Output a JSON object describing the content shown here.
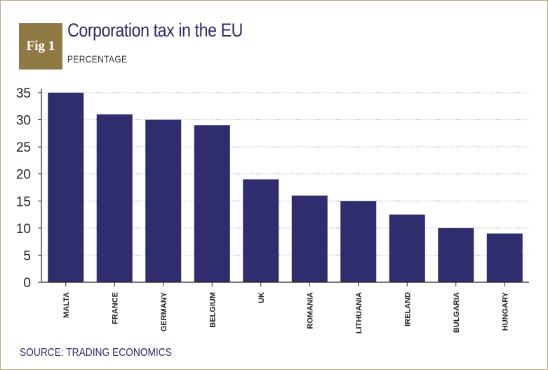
{
  "figure": {
    "badge": "Fig 1",
    "title": "Corporation tax in the EU",
    "subtitle": "PERCENTAGE",
    "source": "SOURCE: TRADING ECONOMICS"
  },
  "colors": {
    "bar": "#2f2d6e",
    "badge": "#8f7a44",
    "frame": "#b8a77c",
    "grid": "#999999"
  },
  "chart_data": {
    "type": "bar",
    "title": "Corporation tax in the EU",
    "subtitle": "PERCENTAGE",
    "xlabel": "",
    "ylabel": "",
    "categories": [
      "MALTA",
      "FRANCE",
      "GERMANY",
      "BELGIUM",
      "UK",
      "ROMANIA",
      "LITHUANIA",
      "IRELAND",
      "BULGARIA",
      "HUNGARY"
    ],
    "values": [
      35,
      31,
      30,
      29,
      19,
      16,
      15,
      12.5,
      10,
      9
    ],
    "ylim": [
      0,
      35
    ],
    "yticks": [
      0,
      5,
      10,
      15,
      20,
      25,
      30,
      35
    ],
    "grid": true,
    "legend": "none"
  }
}
